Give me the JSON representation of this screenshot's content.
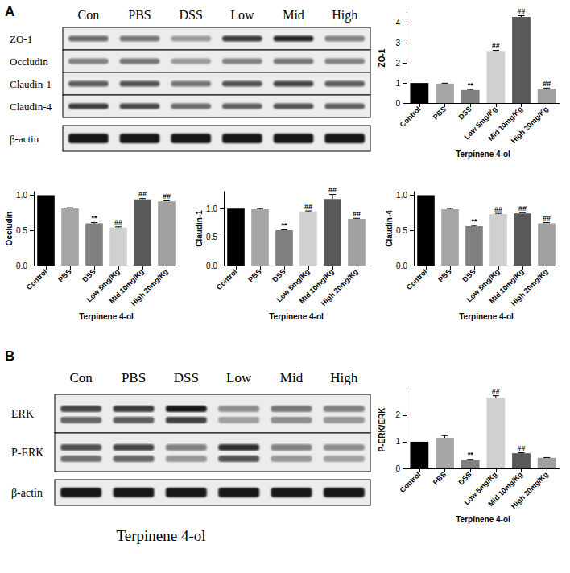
{
  "chart_data": [
    {
      "type": "bar",
      "ylabel": "ZO-1",
      "xlabel": "Terpinene 4-ol",
      "categories": [
        "Control",
        "PBS",
        "DSS",
        "Low 5mg/Kg",
        "Mid 10mg/Kg",
        "High 20mg/Kg"
      ],
      "values": [
        1.0,
        0.97,
        0.65,
        2.6,
        4.3,
        0.72
      ],
      "errors": [
        0.0,
        0.02,
        0.03,
        0.03,
        0.06,
        0.03
      ],
      "annotations": [
        null,
        null,
        "**",
        "##",
        "##",
        "##"
      ],
      "colors": [
        "#000000",
        "#a6a6a6",
        "#7f7f7f",
        "#d0d0d0",
        "#595959",
        "#a0a0a0"
      ],
      "ylim": [
        0,
        4.5
      ],
      "yticks": [
        0,
        1,
        2,
        3,
        4
      ],
      "grid": false
    },
    {
      "type": "bar",
      "ylabel": "Occludin",
      "xlabel": "Terpinene 4-ol",
      "categories": [
        "Control",
        "PBS",
        "DSS",
        "Low 5mg/Kg",
        "Mid 10mg/Kg",
        "High 20mg/Kg"
      ],
      "values": [
        1.0,
        0.81,
        0.6,
        0.54,
        0.94,
        0.91
      ],
      "errors": [
        0.0,
        0.01,
        0.01,
        0.01,
        0.01,
        0.01
      ],
      "annotations": [
        null,
        null,
        "**",
        "##",
        "##",
        "##"
      ],
      "colors": [
        "#000000",
        "#a6a6a6",
        "#7f7f7f",
        "#d0d0d0",
        "#595959",
        "#a0a0a0"
      ],
      "ylim": [
        0,
        1.05
      ],
      "yticks": [
        {
          "value": 0,
          "label": "0.0"
        },
        {
          "value": 0.5,
          "label": "0.5"
        },
        {
          "value": 1,
          "label": "1.0"
        }
      ],
      "grid": false
    },
    {
      "type": "bar",
      "ylabel": "Claudin-1",
      "xlabel": "Terpinene 4-ol",
      "categories": [
        "Control",
        "PBS",
        "DSS",
        "Low 5mg/Kg",
        "Mid 10mg/Kg",
        "High 20mg/Kg"
      ],
      "values": [
        1.0,
        0.99,
        0.62,
        0.95,
        1.17,
        0.82
      ],
      "errors": [
        0.0,
        0.01,
        0.01,
        0.01,
        0.08,
        0.01
      ],
      "annotations": [
        null,
        null,
        "**",
        "##",
        "##",
        "##"
      ],
      "colors": [
        "#000000",
        "#a6a6a6",
        "#7f7f7f",
        "#d0d0d0",
        "#595959",
        "#a0a0a0"
      ],
      "ylim": [
        0,
        1.3
      ],
      "yticks": [
        {
          "value": 0,
          "label": "0.0"
        },
        {
          "value": 0.5,
          "label": "0.5"
        },
        {
          "value": 1,
          "label": "1.0"
        }
      ],
      "grid": false
    },
    {
      "type": "bar",
      "ylabel": "Claudin-4",
      "xlabel": "Terpinene 4-ol",
      "categories": [
        "Control",
        "PBS",
        "DSS",
        "Low 5mg/Kg",
        "Mid 10mg/Kg",
        "High 20mg/Kg"
      ],
      "values": [
        1.0,
        0.8,
        0.56,
        0.73,
        0.74,
        0.6
      ],
      "errors": [
        0.0,
        0.01,
        0.01,
        0.01,
        0.01,
        0.01
      ],
      "annotations": [
        null,
        null,
        "**",
        "##",
        "##",
        "##"
      ],
      "colors": [
        "#000000",
        "#a6a6a6",
        "#7f7f7f",
        "#d0d0d0",
        "#595959",
        "#a0a0a0"
      ],
      "ylim": [
        0,
        1.05
      ],
      "yticks": [
        {
          "value": 0,
          "label": "0.0"
        },
        {
          "value": 0.5,
          "label": "0.5"
        },
        {
          "value": 1,
          "label": "1.0"
        }
      ],
      "grid": false
    },
    {
      "type": "bar",
      "ylabel": "P-ERK/ERK",
      "xlabel": "Terpinene 4-ol",
      "categories": [
        "Control",
        "PBS",
        "DSS",
        "Low 5mg/Kg",
        "Mid 10mg/Kg",
        "High 20mg/Kg"
      ],
      "values": [
        1.0,
        1.15,
        0.32,
        2.65,
        0.57,
        0.4
      ],
      "errors": [
        0.0,
        0.08,
        0.02,
        0.08,
        0.02,
        0.01
      ],
      "annotations": [
        null,
        null,
        "**",
        "##",
        "##",
        null
      ],
      "colors": [
        "#000000",
        "#a6a6a6",
        "#7f7f7f",
        "#d0d0d0",
        "#595959",
        "#a0a0a0"
      ],
      "ylim": [
        0,
        2.9
      ],
      "yticks": [
        0,
        1,
        2
      ],
      "grid": false
    }
  ],
  "panels": [
    {
      "label": "A",
      "lanes": [
        "Con",
        "PBS",
        "DSS",
        "Low",
        "Mid",
        "High"
      ],
      "rows": [
        {
          "name": "ZO-1",
          "bands": 1,
          "intensity": [
            0.55,
            0.5,
            0.35,
            0.75,
            0.85,
            0.45
          ]
        },
        {
          "name": "Occludin",
          "bands": 1,
          "intensity": [
            0.45,
            0.5,
            0.35,
            0.45,
            0.5,
            0.45
          ]
        },
        {
          "name": "Claudin-1",
          "bands": 1,
          "intensity": [
            0.6,
            0.65,
            0.5,
            0.65,
            0.7,
            0.6
          ]
        },
        {
          "name": "Claudin-4",
          "bands": 1,
          "intensity": [
            0.75,
            0.7,
            0.55,
            0.6,
            0.65,
            0.6
          ]
        },
        {
          "name": "β-actin",
          "bands": 1,
          "intensity": [
            0.9,
            0.9,
            0.9,
            0.9,
            0.9,
            0.9
          ]
        }
      ]
    },
    {
      "label": "B",
      "lanes": [
        "Con",
        "PBS",
        "DSS",
        "Low",
        "Mid",
        "High"
      ],
      "rows": [
        {
          "name": "ERK",
          "bands": 2,
          "intensity": [
            0.7,
            0.75,
            0.9,
            0.4,
            0.5,
            0.45
          ]
        },
        {
          "name": "P-ERK",
          "bands": 2,
          "intensity": [
            0.65,
            0.7,
            0.45,
            0.8,
            0.45,
            0.4
          ]
        },
        {
          "name": "β-actin",
          "bands": 1,
          "intensity": [
            0.9,
            0.9,
            0.9,
            0.9,
            0.9,
            0.9
          ]
        }
      ],
      "caption": "Terpinene 4-ol"
    }
  ]
}
